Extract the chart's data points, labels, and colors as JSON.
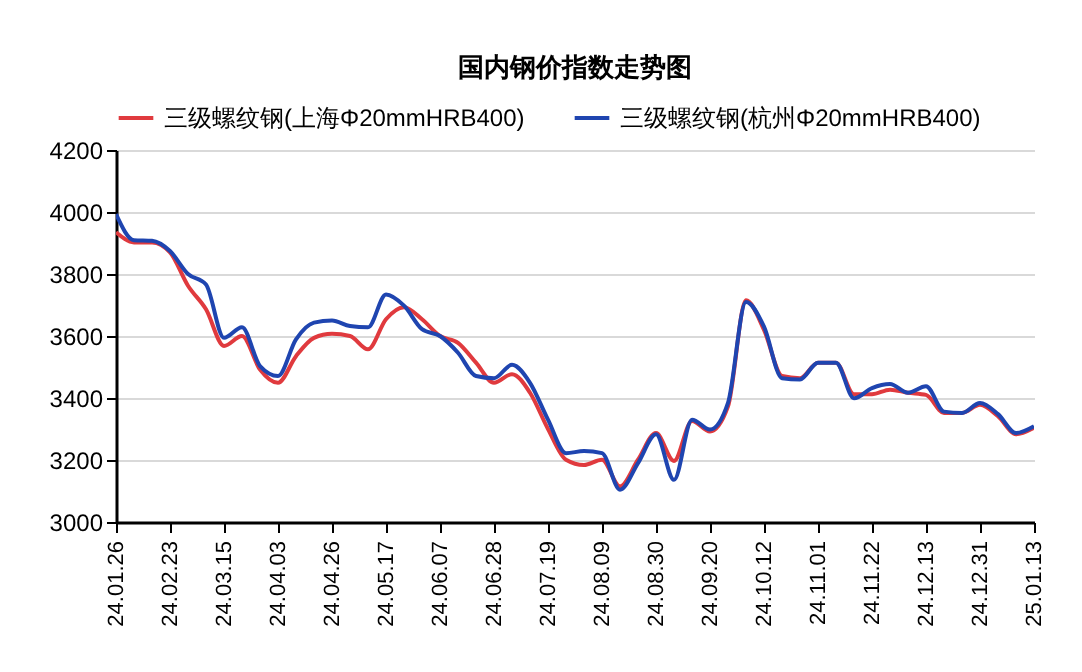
{
  "chart_data": {
    "type": "line",
    "title": "国内钢价指数走势图",
    "categories": [
      "24.01.26",
      null,
      null,
      "24.02.23",
      null,
      null,
      "24.03.15",
      null,
      null,
      "24.04.03",
      null,
      null,
      "24.04.26",
      null,
      null,
      "24.05.17",
      null,
      null,
      "24.06.07",
      null,
      null,
      "24.06.28",
      null,
      null,
      "24.07.19",
      null,
      null,
      "24.08.09",
      null,
      null,
      "24.08.30",
      null,
      null,
      "24.09.20",
      null,
      null,
      "24.10.12",
      null,
      null,
      "24.11.01",
      null,
      null,
      "24.11.22",
      null,
      null,
      "24.12.13",
      null,
      null,
      "24.12.31",
      null,
      null,
      "25.01.13"
    ],
    "series": [
      {
        "name": "三级螺纹钢(上海Φ20mmHRB400)",
        "color": "#e03a3e",
        "values": [
          3935,
          3902,
          3902,
          3870,
          3762,
          3686,
          3568,
          3600,
          3492,
          3449,
          3535,
          3594,
          3607,
          3600,
          3557,
          3654,
          3693,
          3654,
          3600,
          3578,
          3514,
          3449,
          3477,
          3417,
          3300,
          3201,
          3184,
          3201,
          3115,
          3201,
          3287,
          3197,
          3326,
          3292,
          3373,
          3715,
          3620,
          3471,
          3464,
          3514,
          3514,
          3412,
          3412,
          3427,
          3417,
          3410,
          3352,
          3352,
          3378,
          3341,
          3283,
          3304
        ]
      },
      {
        "name": "三级螺纹钢(杭州Φ20mmHRB400)",
        "color": "#1f45b0",
        "values": [
          3993,
          3909,
          3907,
          3874,
          3800,
          3766,
          3594,
          3628,
          3503,
          3471,
          3589,
          3643,
          3650,
          3632,
          3628,
          3734,
          3698,
          3622,
          3600,
          3546,
          3471,
          3464,
          3507,
          3449,
          3330,
          3222,
          3229,
          3222,
          3104,
          3190,
          3283,
          3136,
          3330,
          3298,
          3384,
          3710,
          3630,
          3464,
          3460,
          3514,
          3514,
          3399,
          3432,
          3445,
          3417,
          3438,
          3356,
          3352,
          3384,
          3348,
          3287,
          3309
        ]
      }
    ],
    "ylim": [
      3000,
      4200
    ],
    "yticks": [
      3000,
      3200,
      3400,
      3600,
      3800,
      4000,
      4200
    ],
    "grid": "y",
    "legend": "top"
  }
}
